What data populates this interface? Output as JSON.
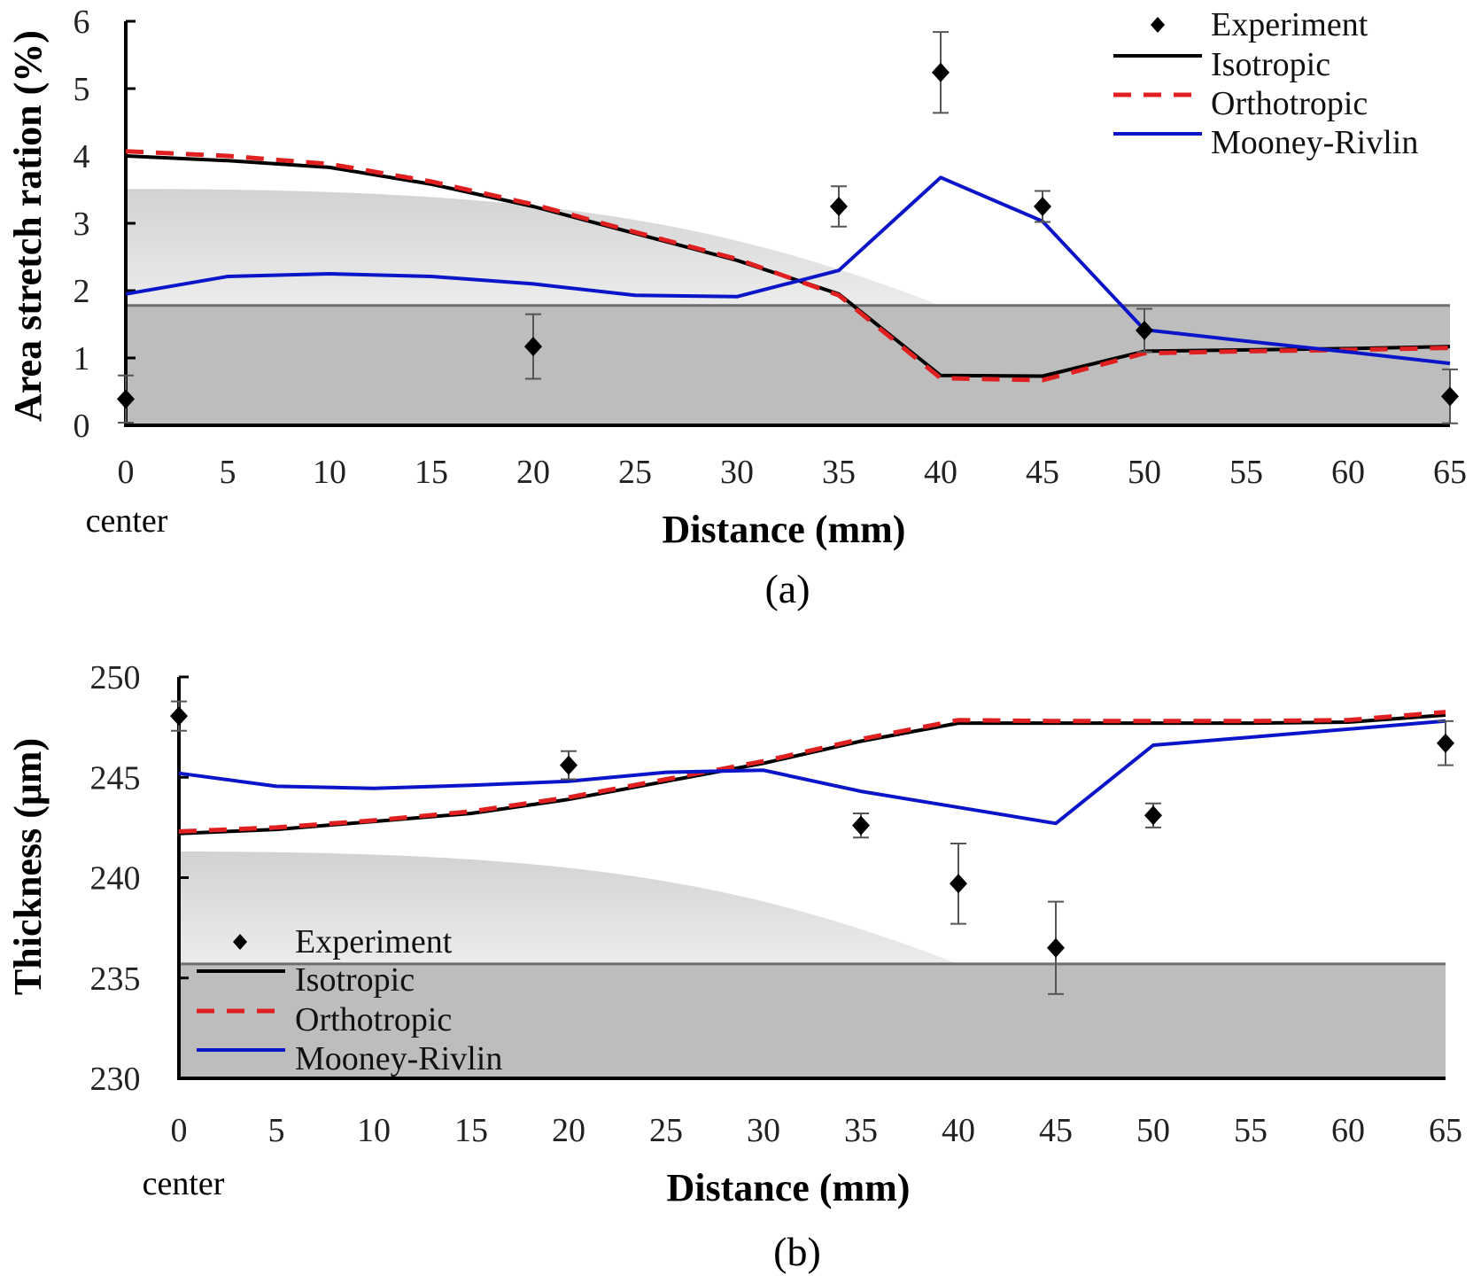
{
  "colors": {
    "isotropic": "#000000",
    "orthotropic": "#e02020",
    "mooney_rivlin": "#0a14c8",
    "experiment": "#000000",
    "errorbar": "#555555",
    "band_fill": "#bdbdbd",
    "band_line": "#6e6e6e",
    "gradient_top": "#d2d2d2",
    "gradient_bottom": "#ececec"
  },
  "chart_data": [
    {
      "type": "line",
      "panel_label": "(a)",
      "title": "",
      "xlabel": "Distance (mm)",
      "ylabel": "Area stretch ration (%)",
      "x_origin_note": "center",
      "xlim": [
        0,
        65
      ],
      "ylim": [
        0,
        6
      ],
      "xticks": [
        "0",
        "5",
        "10",
        "15",
        "20",
        "25",
        "30",
        "35",
        "40",
        "45",
        "50",
        "55",
        "60",
        "65"
      ],
      "yticks": [
        "0",
        "1",
        "2",
        "3",
        "4",
        "5",
        "6"
      ],
      "grid": false,
      "legend_position": "top-right",
      "legend": [
        "Experiment",
        "Isotropic",
        "Orthotropic",
        "Mooney-Rivlin"
      ],
      "x": [
        0,
        5,
        10,
        15,
        20,
        25,
        30,
        35,
        40,
        45,
        50,
        55,
        60,
        65
      ],
      "series": [
        {
          "name": "Isotropic",
          "style": "solid",
          "values": [
            4.0,
            3.93,
            3.83,
            3.58,
            3.25,
            2.85,
            2.45,
            1.95,
            0.74,
            0.73,
            1.1,
            1.12,
            1.14,
            1.17
          ]
        },
        {
          "name": "Orthotropic",
          "style": "dashed",
          "values": [
            4.07,
            4.0,
            3.88,
            3.62,
            3.28,
            2.87,
            2.47,
            1.93,
            0.7,
            0.67,
            1.07,
            1.1,
            1.12,
            1.15
          ]
        },
        {
          "name": "Mooney-Rivlin",
          "style": "solid",
          "values": [
            1.95,
            2.21,
            2.25,
            2.21,
            2.1,
            1.93,
            1.91,
            2.3,
            3.68,
            3.03,
            1.42,
            1.25,
            1.09,
            0.92
          ]
        }
      ],
      "experiment": [
        {
          "x": 0,
          "y": 0.39,
          "err": 0.35
        },
        {
          "x": 20,
          "y": 1.17,
          "err": 0.48
        },
        {
          "x": 35,
          "y": 3.25,
          "err": 0.3
        },
        {
          "x": 40,
          "y": 5.24,
          "err": 0.6
        },
        {
          "x": 45,
          "y": 3.25,
          "err": 0.23
        },
        {
          "x": 50,
          "y": 1.41,
          "err": 0.32
        },
        {
          "x": 65,
          "y": 0.43,
          "err": 0.4
        }
      ],
      "background": {
        "band_top": 1.78,
        "gradient_start": 3.51,
        "gradient_end_x": 40
      }
    },
    {
      "type": "line",
      "panel_label": "(b)",
      "title": "",
      "xlabel": "Distance (mm)",
      "ylabel": "Thickness (μm)",
      "x_origin_note": "center",
      "xlim": [
        0,
        65
      ],
      "ylim": [
        230,
        250
      ],
      "xticks": [
        "0",
        "5",
        "10",
        "15",
        "20",
        "25",
        "30",
        "35",
        "40",
        "45",
        "50",
        "55",
        "60",
        "65"
      ],
      "yticks": [
        "230",
        "235",
        "240",
        "245",
        "250"
      ],
      "grid": false,
      "legend_position": "bottom-left",
      "legend": [
        "Experiment",
        "Isotropic",
        "Orthotropic",
        "Mooney-Rivlin"
      ],
      "x": [
        0,
        5,
        10,
        15,
        20,
        25,
        30,
        35,
        40,
        45,
        50,
        55,
        60,
        65
      ],
      "series": [
        {
          "name": "Isotropic",
          "style": "solid",
          "values": [
            242.2,
            242.4,
            242.8,
            243.2,
            243.9,
            244.8,
            245.7,
            246.8,
            247.7,
            247.7,
            247.7,
            247.7,
            247.75,
            248.1
          ]
        },
        {
          "name": "Orthotropic",
          "style": "dashed",
          "values": [
            242.3,
            242.5,
            242.85,
            243.3,
            244.0,
            244.9,
            245.8,
            246.9,
            247.85,
            247.8,
            247.8,
            247.8,
            247.85,
            248.25
          ]
        },
        {
          "name": "Mooney-Rivlin",
          "style": "solid",
          "values": [
            245.2,
            244.55,
            244.45,
            244.6,
            244.8,
            245.25,
            245.35,
            244.3,
            243.5,
            242.7,
            246.6,
            247.0,
            247.4,
            247.8
          ]
        }
      ],
      "experiment": [
        {
          "x": 0,
          "y": 248.05,
          "err": 0.73
        },
        {
          "x": 20,
          "y": 245.6,
          "err": 0.7
        },
        {
          "x": 35,
          "y": 242.6,
          "err": 0.6
        },
        {
          "x": 40,
          "y": 239.7,
          "err": 2.0
        },
        {
          "x": 45,
          "y": 236.5,
          "err": 2.3
        },
        {
          "x": 50,
          "y": 243.1,
          "err": 0.6
        },
        {
          "x": 65,
          "y": 246.7,
          "err": 1.1
        }
      ],
      "background": {
        "band_top": 235.7,
        "gradient_start": 241.3,
        "gradient_end_x": 40
      }
    }
  ]
}
